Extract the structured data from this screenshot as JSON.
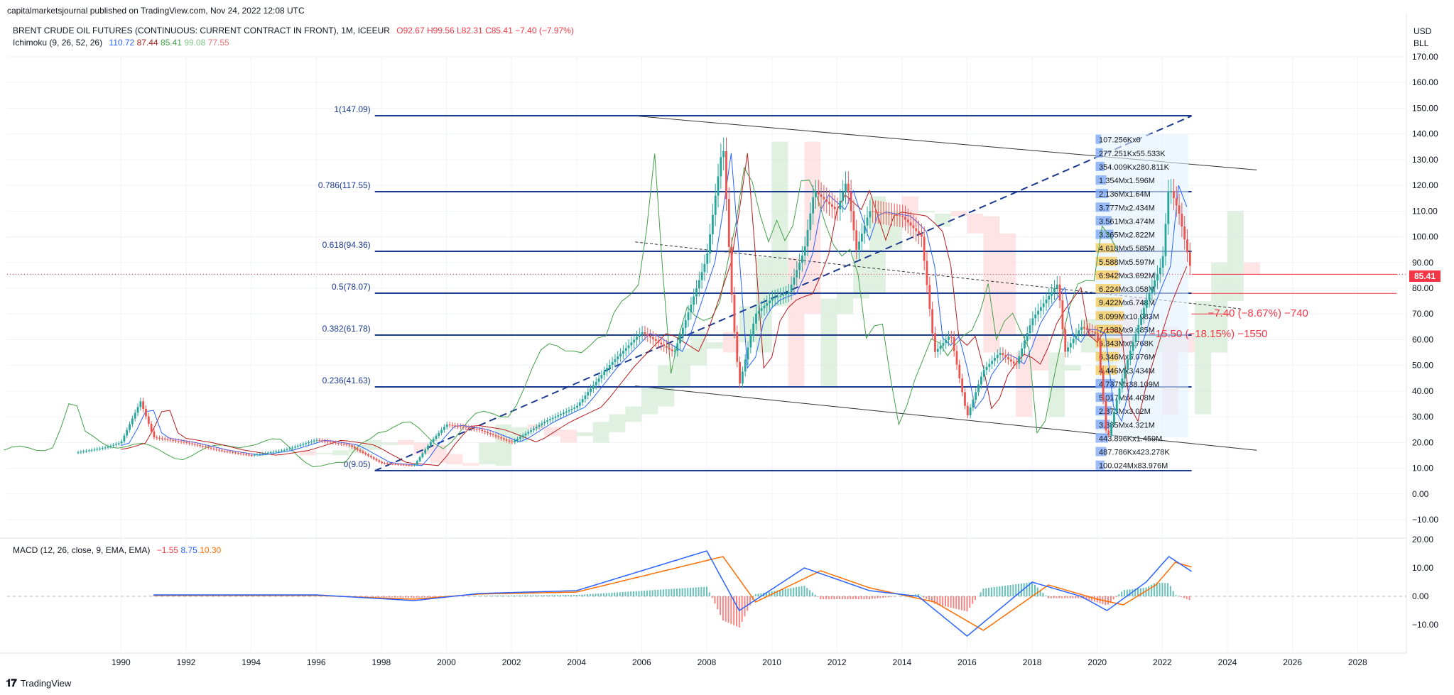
{
  "header": {
    "published": "capitalmarketsjournal published on TradingView.com, Nov 24, 2022 12:08 UTC"
  },
  "legend": {
    "symbol": "BRENT CRUDE OIL FUTURES (CONTINUOUS: CURRENT CONTRACT IN FRONT), 1M, ICEEUR",
    "open": "O92.67",
    "high": "H99.56",
    "low": "L82.31",
    "close": "C85.41",
    "change": "−7.40 (−7.97%)",
    "ichimoku_label": "Ichimoku (9, 26, 52, 26)",
    "ichimoku_values": [
      "110.72",
      "87.44",
      "85.41",
      "99.08",
      "77.55"
    ],
    "macd_label": "MACD (12, 26, close, 9, EMA, EMA)",
    "macd_values": [
      "−1.55",
      "8.75",
      "10.30"
    ]
  },
  "axis": {
    "currency": "USD",
    "unit": "BLL",
    "price_ticks": [
      "170.00",
      "160.00",
      "150.00",
      "140.00",
      "130.00",
      "120.00",
      "110.00",
      "100.00",
      "90.00",
      "80.00",
      "70.00",
      "60.00",
      "50.00",
      "40.00",
      "30.00",
      "20.00",
      "10.00",
      "0.00",
      "−10.00"
    ],
    "macd_ticks": [
      "20.00",
      "10.00",
      "0.00",
      "−10.00"
    ],
    "year_ticks": [
      "1990",
      "1992",
      "1994",
      "1996",
      "1998",
      "2000",
      "2002",
      "2004",
      "2006",
      "2008",
      "2010",
      "2012",
      "2014",
      "2016",
      "2018",
      "2020",
      "2022",
      "2024",
      "2026",
      "2028"
    ],
    "current_price": "85.41"
  },
  "fib_levels": [
    {
      "label": "1(147.09)",
      "price": 147.09
    },
    {
      "label": "0.786(117.55)",
      "price": 117.55
    },
    {
      "label": "0.618(94.36)",
      "price": 94.36
    },
    {
      "label": "0.5(78.07)",
      "price": 78.07
    },
    {
      "label": "0.382(61.78)",
      "price": 61.78
    },
    {
      "label": "0.236(41.63)",
      "price": 41.63
    },
    {
      "label": "0(9.05)",
      "price": 9.05
    }
  ],
  "volume_profile_labels": [
    "107.256Kx0",
    "277.251Kx55.533K",
    "354.009Kx280.811K",
    "1.354Mx1.596M",
    "2.136Mx1.64M",
    "3.777Mx2.434M",
    "3.561Mx3.474M",
    "3.365Mx2.822M",
    "4.618Mx5.585M",
    "5.588Mx5.597M",
    "6.942Mx3.692M",
    "6.224Mx3.058M",
    "9.422Mx6.748M",
    "8.099Mx10.083M",
    "7.138Mx9.485M",
    "5.343Mx6.768K",
    "6.346Mx5.076M",
    "4.446Mx3.434M",
    "4.737Mx38.109M",
    "5.017Mx4.408M",
    "2.873Mx3.02M",
    "3.385Mx4.321M",
    "443.896Kx1.459M",
    "487.786Kx423.278K",
    "100.024Mx83.976M"
  ],
  "annotations": {
    "measure_1": "−7.40 (−8.67%) −740",
    "measure_2": "−15.50 (−18.15%) −1550"
  },
  "colors": {
    "price_up": "#26a69a",
    "price_down": "#ef5350",
    "fib_line": "#1a3a8f",
    "tenkan": "#2962ff",
    "kijun": "#b71c1c",
    "lagging": "#43a047",
    "cloud_up": "#c8e6c9",
    "cloud_down": "#ffcdd2",
    "macd": "#2962ff",
    "signal": "#ff6d00"
  },
  "chart_data": {
    "type": "line",
    "title": "BRENT CRUDE OIL FUTURES (CONTINUOUS: CURRENT CONTRACT IN FRONT), 1M, ICEEUR",
    "xlabel": "",
    "ylabel": "",
    "ylim": [
      -15,
      175
    ],
    "xlim": [
      1986.5,
      2029.5
    ],
    "series": [
      {
        "name": "BRENT CRUDE OIL FUTURES",
        "points": [
          [
            1988.6,
            16
          ],
          [
            1989.5,
            18
          ],
          [
            1990.0,
            20
          ],
          [
            1990.6,
            36
          ],
          [
            1991.0,
            22
          ],
          [
            1992.0,
            20
          ],
          [
            1993.0,
            17
          ],
          [
            1994.0,
            15
          ],
          [
            1995.0,
            17
          ],
          [
            1996.0,
            21
          ],
          [
            1997.0,
            19
          ],
          [
            1998.0,
            12
          ],
          [
            1999.0,
            11
          ],
          [
            1999.5,
            20
          ],
          [
            2000.0,
            27
          ],
          [
            2001.0,
            25
          ],
          [
            2002.0,
            20
          ],
          [
            2003.0,
            28
          ],
          [
            2004.0,
            34
          ],
          [
            2005.0,
            50
          ],
          [
            2006.0,
            63
          ],
          [
            2007.0,
            55
          ],
          [
            2007.5,
            73
          ],
          [
            2008.0,
            92
          ],
          [
            2008.5,
            137
          ],
          [
            2008.8,
            70
          ],
          [
            2009.0,
            42
          ],
          [
            2009.5,
            70
          ],
          [
            2010.0,
            76
          ],
          [
            2010.5,
            78
          ],
          [
            2011.0,
            95
          ],
          [
            2011.3,
            118
          ],
          [
            2012.0,
            110
          ],
          [
            2012.3,
            122
          ],
          [
            2012.6,
            95
          ],
          [
            2013.0,
            110
          ],
          [
            2014.0,
            108
          ],
          [
            2014.6,
            100
          ],
          [
            2015.0,
            55
          ],
          [
            2015.5,
            62
          ],
          [
            2016.0,
            30
          ],
          [
            2016.5,
            48
          ],
          [
            2017.0,
            55
          ],
          [
            2017.5,
            50
          ],
          [
            2018.0,
            68
          ],
          [
            2018.8,
            82
          ],
          [
            2019.0,
            55
          ],
          [
            2019.5,
            65
          ],
          [
            2020.0,
            62
          ],
          [
            2020.3,
            20
          ],
          [
            2020.7,
            42
          ],
          [
            2021.0,
            55
          ],
          [
            2021.5,
            75
          ],
          [
            2022.0,
            90
          ],
          [
            2022.2,
            120
          ],
          [
            2022.5,
            110
          ],
          [
            2022.8,
            92
          ],
          [
            2022.9,
            85.41
          ]
        ]
      }
    ],
    "macd": {
      "series": [
        {
          "name": "MACD",
          "points": [
            [
              1991.0,
              0.5
            ],
            [
              1996.0,
              0.5
            ],
            [
              1999.0,
              -1.5
            ],
            [
              2001.0,
              1
            ],
            [
              2004.0,
              2
            ],
            [
              2008.0,
              16
            ],
            [
              2009.0,
              -5
            ],
            [
              2011.0,
              10
            ],
            [
              2013.0,
              2
            ],
            [
              2014.5,
              0
            ],
            [
              2016.0,
              -14
            ],
            [
              2018.0,
              5
            ],
            [
              2019.5,
              0
            ],
            [
              2020.3,
              -5
            ],
            [
              2021.5,
              5
            ],
            [
              2022.2,
              14
            ],
            [
              2022.9,
              8.75
            ]
          ]
        },
        {
          "name": "Signal",
          "points": [
            [
              1991.0,
              0.3
            ],
            [
              1996.0,
              0.3
            ],
            [
              1999.0,
              -1
            ],
            [
              2001.0,
              0.8
            ],
            [
              2004.0,
              1.5
            ],
            [
              2008.5,
              14
            ],
            [
              2009.5,
              -2
            ],
            [
              2011.5,
              9
            ],
            [
              2013.0,
              3
            ],
            [
              2015.0,
              -2
            ],
            [
              2016.5,
              -12
            ],
            [
              2018.5,
              4
            ],
            [
              2020.0,
              -1
            ],
            [
              2020.8,
              -3
            ],
            [
              2021.8,
              4
            ],
            [
              2022.4,
              12
            ],
            [
              2022.9,
              10.3
            ]
          ]
        }
      ],
      "ylim": [
        -15,
        22
      ]
    }
  }
}
